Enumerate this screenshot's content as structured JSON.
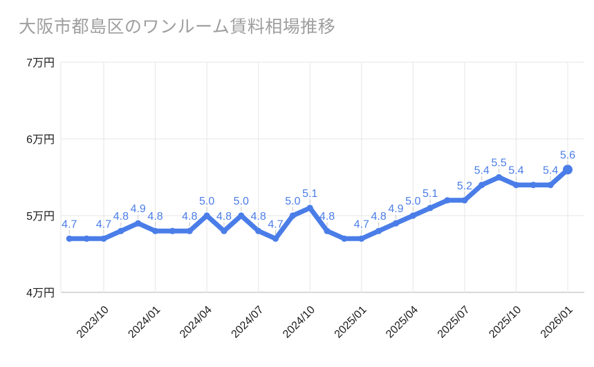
{
  "chart_data": {
    "type": "line",
    "title": "大阪市都島区のワンルーム賃料相場推移",
    "unit": "万円",
    "x": [
      "2023/08",
      "2023/09",
      "2023/10",
      "2023/11",
      "2023/12",
      "2024/01",
      "2024/02",
      "2024/03",
      "2024/04",
      "2024/05",
      "2024/06",
      "2024/07",
      "2024/08",
      "2024/09",
      "2024/10",
      "2024/11",
      "2024/12",
      "2025/01",
      "2025/02",
      "2025/03",
      "2025/04",
      "2025/05",
      "2025/06",
      "2025/07",
      "2025/08",
      "2025/09",
      "2025/10",
      "2025/11",
      "2025/12",
      "2026/01"
    ],
    "values": [
      4.7,
      4.7,
      4.7,
      4.8,
      4.9,
      4.8,
      4.8,
      4.8,
      5.0,
      4.8,
      5.0,
      4.8,
      4.7,
      5.0,
      5.1,
      4.8,
      4.7,
      4.7,
      4.8,
      4.9,
      5.0,
      5.1,
      5.2,
      5.2,
      5.4,
      5.5,
      5.4,
      5.4,
      5.4,
      5.6
    ],
    "point_labels": [
      "4.7",
      null,
      "4.7",
      "4.8",
      "4.9",
      "4.8",
      null,
      "4.8",
      "5.0",
      "4.8",
      "5.0",
      "4.8",
      "4.7",
      "5.0",
      "5.1",
      "4.8",
      null,
      "4.7",
      "4.8",
      "4.9",
      "5.0",
      "5.1",
      null,
      "5.2",
      "5.4",
      "5.5",
      "5.4",
      null,
      "5.4",
      "5.6"
    ],
    "x_tick_labels": [
      "2023/10",
      "2024/01",
      "2024/04",
      "2024/07",
      "2024/10",
      "2025/01",
      "2025/04",
      "2025/07",
      "2025/10",
      "2026/01"
    ],
    "x_tick_indices": [
      2,
      5,
      8,
      11,
      14,
      17,
      20,
      23,
      26,
      29
    ],
    "y_tick_labels": [
      "7万円",
      "6万円",
      "5万円",
      "4万円"
    ],
    "y_tick_values": [
      7,
      6,
      5,
      4
    ],
    "ylim": [
      4,
      7
    ],
    "legend": "none",
    "grid": true,
    "colors": {
      "series": "#4a7de8",
      "annotation": "#4a7de8",
      "title": "#9e9e9e",
      "axis_text": "#1a1a1a",
      "gridline": "#e6e6e6",
      "baseline": "#cccccc",
      "stem": "#c4c4c4",
      "background": "#ffffff"
    }
  }
}
